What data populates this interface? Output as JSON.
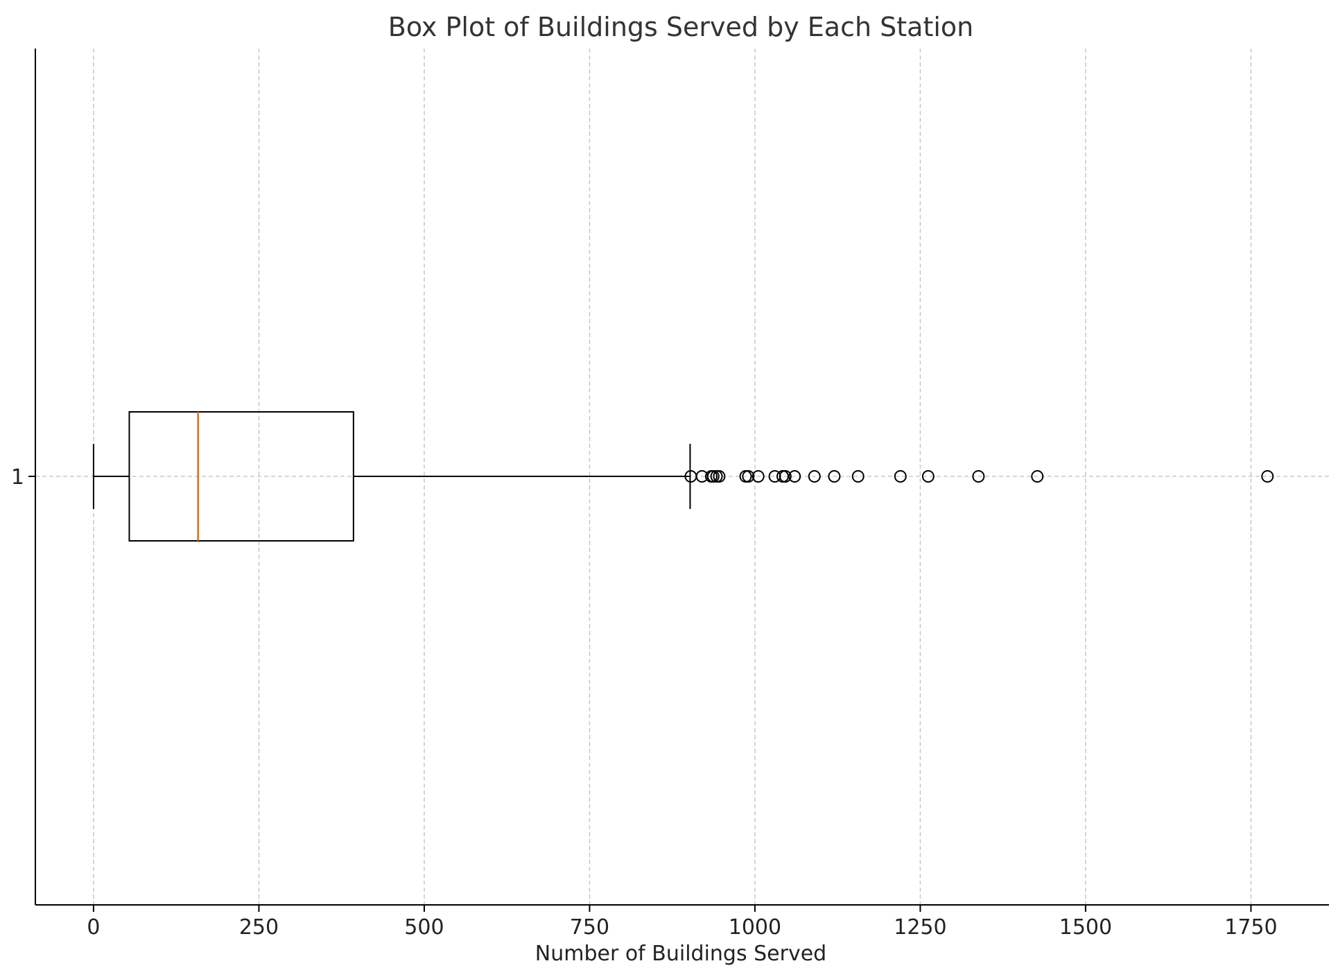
{
  "chart_data": {
    "type": "box",
    "title": "Box Plot of Buildings Served by Each Station",
    "xlabel": "Number of Buildings Served",
    "ylabel": "",
    "orientation": "horizontal",
    "xlim": [
      -88,
      1868
    ],
    "x_ticks": [
      0,
      250,
      500,
      750,
      1000,
      1250,
      1500,
      1750
    ],
    "y_ticks": [
      "1"
    ],
    "grid": true,
    "colors": {
      "box": "#000000",
      "median": "#e06a1b",
      "grid": "#c8c8c8"
    },
    "series": [
      {
        "label": "1",
        "whisker_low": 0,
        "q1": 54,
        "median": 158,
        "q3": 393,
        "whisker_high": 902,
        "outliers": [
          903,
          920,
          934,
          937,
          942,
          946,
          986,
          990,
          1005,
          1030,
          1042,
          1046,
          1060,
          1090,
          1120,
          1156,
          1220,
          1262,
          1338,
          1427,
          1775
        ]
      }
    ]
  }
}
